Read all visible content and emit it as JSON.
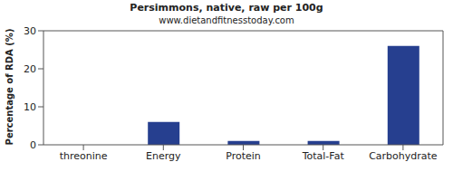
{
  "chart_data": {
    "type": "bar",
    "title": "Persimmons, native, raw per 100g",
    "subtitle": "www.dietandfitnesstoday.com",
    "ylabel": "Percentage of RDA (%)",
    "categories": [
      "threonine",
      "Energy",
      "Protein",
      "Total-Fat",
      "Carbohydrate"
    ],
    "values": [
      0,
      6,
      1,
      1,
      26
    ],
    "color": "#263f8f",
    "ylim": [
      0,
      30
    ],
    "yticks": [
      0,
      10,
      20,
      30
    ],
    "grid": false
  }
}
